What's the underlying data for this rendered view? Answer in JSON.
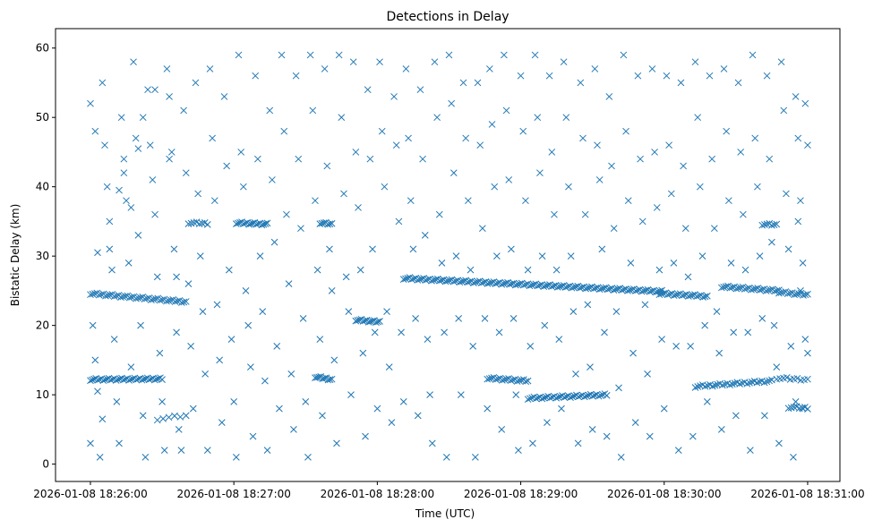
{
  "chart_data": {
    "type": "scatter",
    "title": "Detections in Delay",
    "xlabel": "Time (UTC)",
    "ylabel": "Bistatic Delay (km)",
    "x_units": "seconds since 2026-01-08 18:26:00",
    "xlim": [
      -14.6,
      313.5
    ],
    "ylim": [
      -2.5,
      62.8
    ],
    "grid": false,
    "marker": "x",
    "color": "#1f77b4",
    "xticks": [
      {
        "value": 0,
        "label": "2026-01-08 18:26:00"
      },
      {
        "value": 60,
        "label": "2026-01-08 18:27:00"
      },
      {
        "value": 120,
        "label": "2026-01-08 18:28:00"
      },
      {
        "value": 180,
        "label": "2026-01-08 18:29:00"
      },
      {
        "value": 240,
        "label": "2026-01-08 18:30:00"
      },
      {
        "value": 300,
        "label": "2026-01-08 18:31:00"
      }
    ],
    "yticks": [
      {
        "value": 0,
        "label": "0"
      },
      {
        "value": 10,
        "label": "10"
      },
      {
        "value": 20,
        "label": "20"
      },
      {
        "value": 30,
        "label": "30"
      },
      {
        "value": 40,
        "label": "40"
      },
      {
        "value": 50,
        "label": "50"
      },
      {
        "value": 60,
        "label": "60"
      }
    ],
    "tracks": [
      {
        "t": [
          0,
          40
        ],
        "d": [
          24.6,
          23.4
        ],
        "n": 45
      },
      {
        "t": [
          0,
          30
        ],
        "d": [
          12.2,
          12.3
        ],
        "n": 40
      },
      {
        "t": [
          61,
          74
        ],
        "d": [
          34.8,
          34.6
        ],
        "n": 18
      },
      {
        "t": [
          41,
          49
        ],
        "d": [
          34.8,
          34.7
        ],
        "n": 8
      },
      {
        "t": [
          96,
          101
        ],
        "d": [
          34.8,
          34.6
        ],
        "n": 7
      },
      {
        "t": [
          111,
          121
        ],
        "d": [
          20.8,
          20.5
        ],
        "n": 14
      },
      {
        "t": [
          94,
          101
        ],
        "d": [
          12.6,
          12.2
        ],
        "n": 10
      },
      {
        "t": [
          131,
          239
        ],
        "d": [
          26.8,
          24.9
        ],
        "n": 130
      },
      {
        "t": [
          166,
          183
        ],
        "d": [
          12.4,
          12.0
        ],
        "n": 20
      },
      {
        "t": [
          183,
          216
        ],
        "d": [
          9.5,
          10.0
        ],
        "n": 40
      },
      {
        "t": [
          238,
          258
        ],
        "d": [
          24.6,
          24.2
        ],
        "n": 24
      },
      {
        "t": [
          264,
          288
        ],
        "d": [
          25.6,
          25.0
        ],
        "n": 28
      },
      {
        "t": [
          288,
          300
        ],
        "d": [
          24.8,
          24.4
        ],
        "n": 14
      },
      {
        "t": [
          253,
          285
        ],
        "d": [
          11.2,
          12.0
        ],
        "n": 32
      },
      {
        "t": [
          281,
          287
        ],
        "d": [
          34.6,
          34.5
        ],
        "n": 7
      },
      {
        "t": [
          287,
          300
        ],
        "d": [
          12.4,
          12.2
        ],
        "n": 10
      },
      {
        "t": [
          292,
          300
        ],
        "d": [
          8.2,
          8.1
        ],
        "n": 8
      },
      {
        "t": [
          28,
          40
        ],
        "d": [
          6.5,
          7.0
        ],
        "n": 6
      }
    ],
    "points": [
      [
        0,
        52
      ],
      [
        2,
        48
      ],
      [
        3,
        30.5
      ],
      [
        1,
        20
      ],
      [
        2,
        15
      ],
      [
        0,
        3
      ],
      [
        4,
        1
      ],
      [
        5,
        55
      ],
      [
        6,
        46
      ],
      [
        7,
        40
      ],
      [
        8,
        35
      ],
      [
        9,
        28
      ],
      [
        10,
        18
      ],
      [
        11,
        9
      ],
      [
        12,
        3
      ],
      [
        13,
        50
      ],
      [
        14,
        44
      ],
      [
        15,
        38
      ],
      [
        16,
        29
      ],
      [
        17,
        14
      ],
      [
        18,
        58
      ],
      [
        19,
        47
      ],
      [
        20,
        33
      ],
      [
        21,
        20
      ],
      [
        22,
        7
      ],
      [
        23,
        1
      ],
      [
        24,
        54
      ],
      [
        25,
        46
      ],
      [
        26,
        41
      ],
      [
        27,
        36
      ],
      [
        28,
        27
      ],
      [
        29,
        16
      ],
      [
        30,
        9
      ],
      [
        31,
        2
      ],
      [
        32,
        57
      ],
      [
        33,
        53
      ],
      [
        34,
        45
      ],
      [
        35,
        31
      ],
      [
        36,
        19
      ],
      [
        37,
        5
      ],
      [
        39,
        51
      ],
      [
        40,
        42
      ],
      [
        41,
        26
      ],
      [
        42,
        17
      ],
      [
        43,
        8
      ],
      [
        44,
        55
      ],
      [
        45,
        39
      ],
      [
        46,
        30
      ],
      [
        47,
        22
      ],
      [
        48,
        13
      ],
      [
        49,
        2
      ],
      [
        50,
        57
      ],
      [
        51,
        47
      ],
      [
        52,
        38
      ],
      [
        53,
        23
      ],
      [
        54,
        15
      ],
      [
        55,
        6
      ],
      [
        56,
        53
      ],
      [
        57,
        43
      ],
      [
        58,
        28
      ],
      [
        59,
        18
      ],
      [
        60,
        9
      ],
      [
        61,
        1
      ],
      [
        62,
        59
      ],
      [
        63,
        45
      ],
      [
        64,
        40
      ],
      [
        65,
        25
      ],
      [
        66,
        20
      ],
      [
        67,
        14
      ],
      [
        68,
        4
      ],
      [
        69,
        56
      ],
      [
        70,
        44
      ],
      [
        71,
        30
      ],
      [
        72,
        22
      ],
      [
        73,
        12
      ],
      [
        74,
        2
      ],
      [
        75,
        51
      ],
      [
        76,
        41
      ],
      [
        77,
        32
      ],
      [
        78,
        17
      ],
      [
        79,
        8
      ],
      [
        80,
        59
      ],
      [
        81,
        48
      ],
      [
        82,
        36
      ],
      [
        83,
        26
      ],
      [
        84,
        13
      ],
      [
        85,
        5
      ],
      [
        86,
        56
      ],
      [
        87,
        44
      ],
      [
        88,
        34
      ],
      [
        89,
        21
      ],
      [
        90,
        9
      ],
      [
        91,
        1
      ],
      [
        92,
        59
      ],
      [
        93,
        51
      ],
      [
        94,
        38
      ],
      [
        95,
        28
      ],
      [
        96,
        18
      ],
      [
        97,
        7
      ],
      [
        98,
        57
      ],
      [
        99,
        43
      ],
      [
        100,
        31
      ],
      [
        101,
        25
      ],
      [
        102,
        15
      ],
      [
        103,
        3
      ],
      [
        104,
        59
      ],
      [
        105,
        50
      ],
      [
        106,
        39
      ],
      [
        107,
        27
      ],
      [
        108,
        22
      ],
      [
        109,
        10
      ],
      [
        110,
        58
      ],
      [
        111,
        45
      ],
      [
        112,
        37
      ],
      [
        113,
        28
      ],
      [
        114,
        16
      ],
      [
        115,
        4
      ],
      [
        116,
        54
      ],
      [
        117,
        44
      ],
      [
        118,
        31
      ],
      [
        119,
        19
      ],
      [
        120,
        8
      ],
      [
        121,
        58
      ],
      [
        122,
        48
      ],
      [
        123,
        40
      ],
      [
        124,
        22
      ],
      [
        125,
        14
      ],
      [
        126,
        6
      ],
      [
        127,
        53
      ],
      [
        128,
        46
      ],
      [
        129,
        35
      ],
      [
        130,
        19
      ],
      [
        131,
        9
      ],
      [
        132,
        57
      ],
      [
        133,
        47
      ],
      [
        134,
        38
      ],
      [
        135,
        31
      ],
      [
        136,
        21
      ],
      [
        137,
        7
      ],
      [
        138,
        54
      ],
      [
        139,
        44
      ],
      [
        140,
        33
      ],
      [
        141,
        18
      ],
      [
        142,
        10
      ],
      [
        143,
        3
      ],
      [
        144,
        58
      ],
      [
        145,
        50
      ],
      [
        146,
        36
      ],
      [
        147,
        29
      ],
      [
        148,
        19
      ],
      [
        149,
        1
      ],
      [
        150,
        59
      ],
      [
        151,
        52
      ],
      [
        152,
        42
      ],
      [
        153,
        30
      ],
      [
        154,
        21
      ],
      [
        155,
        10
      ],
      [
        156,
        55
      ],
      [
        157,
        47
      ],
      [
        158,
        38
      ],
      [
        159,
        28
      ],
      [
        160,
        17
      ],
      [
        161,
        1
      ],
      [
        162,
        55
      ],
      [
        163,
        46
      ],
      [
        164,
        34
      ],
      [
        165,
        21
      ],
      [
        166,
        8
      ],
      [
        167,
        57
      ],
      [
        168,
        49
      ],
      [
        169,
        40
      ],
      [
        170,
        30
      ],
      [
        171,
        19
      ],
      [
        172,
        5
      ],
      [
        173,
        59
      ],
      [
        174,
        51
      ],
      [
        175,
        41
      ],
      [
        176,
        31
      ],
      [
        177,
        21
      ],
      [
        178,
        10
      ],
      [
        179,
        2
      ],
      [
        180,
        56
      ],
      [
        181,
        48
      ],
      [
        182,
        38
      ],
      [
        183,
        28
      ],
      [
        184,
        17
      ],
      [
        185,
        3
      ],
      [
        186,
        59
      ],
      [
        187,
        50
      ],
      [
        188,
        42
      ],
      [
        189,
        30
      ],
      [
        190,
        20
      ],
      [
        191,
        6
      ],
      [
        192,
        56
      ],
      [
        193,
        45
      ],
      [
        194,
        36
      ],
      [
        195,
        28
      ],
      [
        196,
        18
      ],
      [
        197,
        8
      ],
      [
        198,
        58
      ],
      [
        199,
        50
      ],
      [
        200,
        40
      ],
      [
        201,
        30
      ],
      [
        202,
        22
      ],
      [
        203,
        13
      ],
      [
        204,
        3
      ],
      [
        205,
        55
      ],
      [
        206,
        47
      ],
      [
        207,
        36
      ],
      [
        208,
        23
      ],
      [
        209,
        14
      ],
      [
        210,
        5
      ],
      [
        211,
        57
      ],
      [
        212,
        46
      ],
      [
        213,
        41
      ],
      [
        214,
        31
      ],
      [
        215,
        19
      ],
      [
        216,
        4
      ],
      [
        217,
        53
      ],
      [
        218,
        43
      ],
      [
        219,
        34
      ],
      [
        220,
        22
      ],
      [
        221,
        11
      ],
      [
        222,
        1
      ],
      [
        223,
        59
      ],
      [
        224,
        48
      ],
      [
        225,
        38
      ],
      [
        226,
        29
      ],
      [
        227,
        16
      ],
      [
        228,
        6
      ],
      [
        229,
        56
      ],
      [
        230,
        44
      ],
      [
        231,
        35
      ],
      [
        232,
        23
      ],
      [
        233,
        13
      ],
      [
        234,
        4
      ],
      [
        235,
        57
      ],
      [
        236,
        45
      ],
      [
        237,
        37
      ],
      [
        238,
        28
      ],
      [
        239,
        18
      ],
      [
        240,
        8
      ],
      [
        241,
        56
      ],
      [
        242,
        46
      ],
      [
        243,
        39
      ],
      [
        244,
        29
      ],
      [
        245,
        17
      ],
      [
        246,
        2
      ],
      [
        247,
        55
      ],
      [
        248,
        43
      ],
      [
        249,
        34
      ],
      [
        250,
        27
      ],
      [
        251,
        17
      ],
      [
        252,
        4
      ],
      [
        253,
        58
      ],
      [
        254,
        50
      ],
      [
        255,
        40
      ],
      [
        256,
        30
      ],
      [
        257,
        20
      ],
      [
        258,
        9
      ],
      [
        259,
        56
      ],
      [
        260,
        44
      ],
      [
        261,
        34
      ],
      [
        262,
        22
      ],
      [
        263,
        16
      ],
      [
        264,
        5
      ],
      [
        265,
        57
      ],
      [
        266,
        48
      ],
      [
        267,
        38
      ],
      [
        268,
        29
      ],
      [
        269,
        19
      ],
      [
        270,
        7
      ],
      [
        271,
        55
      ],
      [
        272,
        45
      ],
      [
        273,
        36
      ],
      [
        274,
        28
      ],
      [
        275,
        19
      ],
      [
        276,
        2
      ],
      [
        277,
        59
      ],
      [
        278,
        47
      ],
      [
        279,
        40
      ],
      [
        280,
        30
      ],
      [
        281,
        21
      ],
      [
        282,
        7
      ],
      [
        283,
        56
      ],
      [
        284,
        44
      ],
      [
        285,
        32
      ],
      [
        286,
        20
      ],
      [
        287,
        14
      ],
      [
        288,
        3
      ],
      [
        289,
        58
      ],
      [
        290,
        51
      ],
      [
        291,
        39
      ],
      [
        292,
        31
      ],
      [
        293,
        17
      ],
      [
        294,
        1
      ],
      [
        295,
        53
      ],
      [
        296,
        47
      ],
      [
        297,
        38
      ],
      [
        298,
        29
      ],
      [
        299,
        18
      ],
      [
        300,
        46
      ],
      [
        300,
        16
      ],
      [
        299,
        52
      ],
      [
        298,
        8
      ],
      [
        297,
        25
      ],
      [
        296,
        35
      ],
      [
        295,
        9
      ],
      [
        3,
        10.5
      ],
      [
        5,
        6.5
      ],
      [
        8,
        31
      ],
      [
        12,
        39.5
      ],
      [
        14,
        42
      ],
      [
        17,
        37
      ],
      [
        20,
        45.5
      ],
      [
        22,
        50
      ],
      [
        27,
        54
      ],
      [
        33,
        44
      ],
      [
        36,
        27
      ],
      [
        38,
        2
      ]
    ]
  }
}
